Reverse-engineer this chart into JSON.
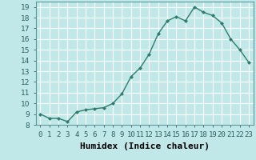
{
  "x": [
    0,
    1,
    2,
    3,
    4,
    5,
    6,
    7,
    8,
    9,
    10,
    11,
    12,
    13,
    14,
    15,
    16,
    17,
    18,
    19,
    20,
    21,
    22,
    23
  ],
  "y": [
    9.0,
    8.6,
    8.6,
    8.3,
    9.2,
    9.4,
    9.5,
    9.6,
    10.0,
    10.9,
    12.5,
    13.3,
    14.6,
    16.5,
    17.7,
    18.1,
    17.7,
    19.0,
    18.5,
    18.2,
    17.5,
    16.0,
    15.0,
    13.8
  ],
  "line_color": "#2d7d6e",
  "bg_color": "#c0e8e8",
  "grid_color": "#ffffff",
  "xlabel": "Humidex (Indice chaleur)",
  "ylim": [
    8,
    19.5
  ],
  "xlim": [
    -0.5,
    23.5
  ],
  "yticks": [
    8,
    9,
    10,
    11,
    12,
    13,
    14,
    15,
    16,
    17,
    18,
    19
  ],
  "xtick_labels": [
    "0",
    "1",
    "2",
    "3",
    "4",
    "5",
    "6",
    "7",
    "8",
    "9",
    "10",
    "11",
    "12",
    "13",
    "14",
    "15",
    "16",
    "17",
    "18",
    "19",
    "20",
    "21",
    "22",
    "23"
  ],
  "marker": "D",
  "marker_size": 2.0,
  "linewidth": 1.0,
  "xlabel_fontsize": 8,
  "tick_fontsize": 6.5
}
